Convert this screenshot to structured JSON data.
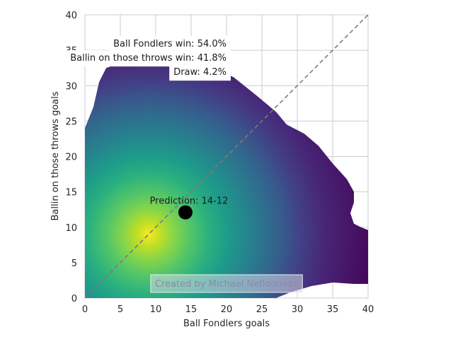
{
  "chart_data": {
    "type": "heatmap",
    "xlabel": "Ball Fondlers goals",
    "ylabel": "Ballin on those throws goals",
    "xlim": [
      0,
      40
    ],
    "ylim": [
      0,
      40
    ],
    "xticks": [
      0,
      5,
      10,
      15,
      20,
      25,
      30,
      35,
      40
    ],
    "yticks": [
      0,
      5,
      10,
      15,
      20,
      25,
      30,
      35,
      40
    ],
    "grid": true,
    "colormap": "viridis",
    "density_peak": {
      "x": 9.5,
      "y": 9
    },
    "diagonal_line": {
      "x": [
        0,
        40
      ],
      "y": [
        0,
        40
      ],
      "style": "dashed",
      "color": "#808080"
    },
    "prediction_point": {
      "x": 14.2,
      "y": 12.1,
      "label": "Prediction: 14-12",
      "color": "#000000"
    },
    "annotations": [
      {
        "text": "Ball Fondlers win: 54.0%",
        "x": 20,
        "y": 36
      },
      {
        "text": "Ballin on those throws win: 41.8%",
        "x": 20,
        "y": 34
      },
      {
        "text": "Draw: 4.2%",
        "x": 20,
        "y": 32
      }
    ],
    "watermark": "Created by Michael Nefiodovas"
  }
}
